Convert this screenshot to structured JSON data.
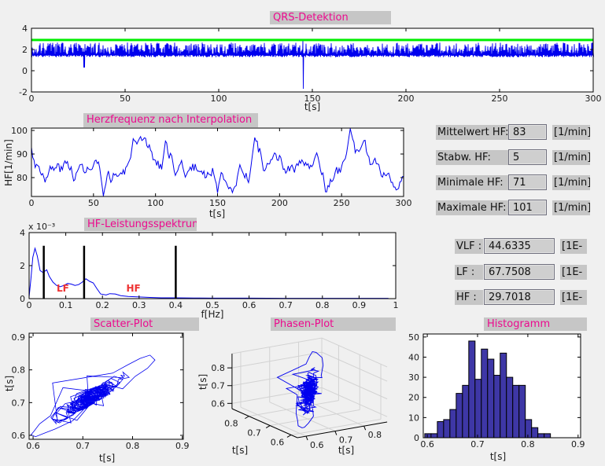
{
  "window": {
    "bg": "#f0f0f0",
    "label_bg": "#c6c6c6",
    "title_color": "#ec0a8e",
    "line_blue": "#0000ee",
    "threshold_green": "#00ee00",
    "hist_fill": "#3e37a6",
    "band_label_red": "#ee3333"
  },
  "stats_hf": {
    "rows": [
      {
        "label": "Mittelwert HF:",
        "value": "83",
        "unit": "[1/min]"
      },
      {
        "label": "Stabw. HF:",
        "value": "5",
        "unit": "[1/min]"
      },
      {
        "label": "Minimale HF:",
        "value": "71",
        "unit": "[1/min]"
      },
      {
        "label": "Maximale HF:",
        "value": "101",
        "unit": "[1/min]"
      }
    ]
  },
  "stats_bands": {
    "rows": [
      {
        "label": "VLF :",
        "value": "44.6335",
        "unit": "[1E-"
      },
      {
        "label": "LF :",
        "value": "67.7508",
        "unit": "[1E-"
      },
      {
        "label": "HF :",
        "value": "29.7018",
        "unit": "[1E-"
      }
    ]
  },
  "chart_data": [
    {
      "id": "qrs",
      "type": "line",
      "title": "QRS-Detektion",
      "xlabel": "t[s]",
      "xlim": [
        0,
        300
      ],
      "ylim": [
        -2,
        4
      ],
      "xticks": [
        0,
        50,
        100,
        150,
        200,
        250,
        300
      ],
      "yticks": [
        -2,
        0,
        2,
        4
      ],
      "series_color": "#0000ee",
      "threshold_line_y": 2.9,
      "threshold_color": "#00ee00",
      "signal": {
        "baseline_band": [
          1.28,
          1.7
        ],
        "peak_range": [
          1.85,
          2.65
        ],
        "artifacts": [
          {
            "t": 28,
            "min": 0.3
          },
          {
            "t": 145,
            "min": -1.7,
            "max": 2.95
          }
        ]
      }
    },
    {
      "id": "hf",
      "type": "line",
      "title": "Herzfrequenz nach Interpolation",
      "xlabel": "t[s]",
      "ylabel": "HF[1/min]",
      "xlim": [
        0,
        300
      ],
      "ylim": [
        72,
        101
      ],
      "xticks": [
        0,
        50,
        100,
        150,
        200,
        250,
        300
      ],
      "yticks": [
        80,
        90,
        100
      ],
      "series_color": "#0000ee",
      "summary": {
        "mean": 83,
        "std": 5,
        "min": 71,
        "max": 101,
        "start": 93,
        "peak_t": 257,
        "dip_t": 58
      }
    },
    {
      "id": "spectrum",
      "type": "line",
      "title": "HF-Leistungsspektrum",
      "xlabel": "f[Hz]",
      "scale_label": "x 10⁻³",
      "xlim": [
        0,
        1
      ],
      "ylim_mHz": [
        0,
        4
      ],
      "xticks": [
        0,
        0.1,
        0.2,
        0.3,
        0.4,
        0.5,
        0.6,
        0.7,
        0.8,
        0.9,
        1
      ],
      "yticks_mHz": [
        0,
        2,
        4
      ],
      "series_color": "#0000ee",
      "curve_mHz": [
        [
          0,
          0.1
        ],
        [
          0.005,
          1.2
        ],
        [
          0.01,
          2.5
        ],
        [
          0.016,
          3.05
        ],
        [
          0.022,
          2.6
        ],
        [
          0.03,
          1.7
        ],
        [
          0.038,
          1.58
        ],
        [
          0.048,
          1.75
        ],
        [
          0.055,
          1.35
        ],
        [
          0.065,
          1.0
        ],
        [
          0.075,
          0.8
        ],
        [
          0.085,
          0.72
        ],
        [
          0.095,
          0.8
        ],
        [
          0.105,
          0.92
        ],
        [
          0.115,
          0.88
        ],
        [
          0.125,
          0.8
        ],
        [
          0.135,
          0.85
        ],
        [
          0.145,
          1.0
        ],
        [
          0.155,
          1.2
        ],
        [
          0.165,
          1.05
        ],
        [
          0.175,
          0.95
        ],
        [
          0.185,
          0.6
        ],
        [
          0.195,
          0.28
        ],
        [
          0.21,
          0.22
        ],
        [
          0.22,
          0.3
        ],
        [
          0.235,
          0.28
        ],
        [
          0.25,
          0.18
        ],
        [
          0.27,
          0.13
        ],
        [
          0.3,
          0.1
        ],
        [
          0.33,
          0.07
        ],
        [
          0.36,
          0.05
        ],
        [
          0.4,
          0.05
        ],
        [
          0.45,
          0.04
        ],
        [
          0.5,
          0.03
        ],
        [
          0.6,
          0.03
        ],
        [
          0.7,
          0.02
        ],
        [
          0.8,
          0.02
        ],
        [
          0.9,
          0.02
        ],
        [
          0.98,
          0.02
        ]
      ],
      "band_markers": {
        "x": [
          0.04,
          0.15,
          0.4
        ],
        "top_mHz": 3.2
      },
      "band_labels": [
        {
          "text": "LF",
          "x": 0.075,
          "y_mHz": 0.42
        },
        {
          "text": "HF",
          "x": 0.265,
          "y_mHz": 0.42
        }
      ],
      "band_label_color": "#ee3333"
    },
    {
      "id": "scatter",
      "type": "scatter",
      "title": "Scatter-Plot",
      "xlabel": "t[s]",
      "ylabel": "t[s]",
      "xlim": [
        0.592,
        0.902
      ],
      "ylim": [
        0.588,
        0.912
      ],
      "xticks": [
        0.6,
        0.7,
        0.8,
        0.9
      ],
      "yticks": [
        0.6,
        0.7,
        0.8,
        0.9
      ],
      "series_color": "#0000ee",
      "cloud": {
        "min": 0.595,
        "max": 0.845,
        "mean": 0.72,
        "n": 360
      }
    },
    {
      "id": "phase",
      "type": "line3d",
      "title": "Phasen-Plot",
      "xlabel": "t[s]",
      "ylabel": "t[s]",
      "zlabel": "t[s]",
      "ticks": [
        0.6,
        0.7,
        0.8
      ],
      "lim": [
        0.57,
        0.88
      ],
      "series_color": "#0000ee"
    },
    {
      "id": "hist",
      "type": "bar",
      "title": "Histogramm",
      "xlabel": "t[s]",
      "bin_start": 0.595,
      "bin_width": 0.0125,
      "values": [
        2,
        2,
        8,
        9,
        14,
        22,
        26,
        48,
        29,
        44,
        39,
        31,
        42,
        30,
        26,
        26,
        9,
        5,
        2,
        2
      ],
      "xlim": [
        0.592,
        0.905
      ],
      "ylim": [
        0,
        51.5
      ],
      "xticks": [
        0.6,
        0.7,
        0.8,
        0.9
      ],
      "yticks": [
        0,
        10,
        20,
        30,
        40,
        50
      ],
      "fill": "#3e37a6",
      "edge": "#000000"
    }
  ]
}
